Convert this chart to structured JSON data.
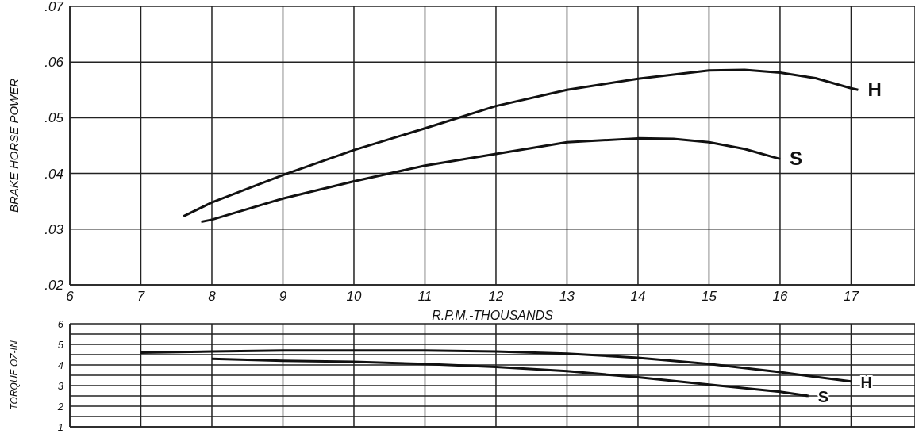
{
  "chart_data": [
    {
      "type": "line",
      "xlabel": "R.P.M.-THOUSANDS",
      "ylabel": "BRAKE HORSE POWER",
      "xlim": [
        6,
        17.9
      ],
      "xticks": [
        6,
        7,
        8,
        9,
        10,
        11,
        12,
        13,
        14,
        15,
        16,
        17
      ],
      "ylim": [
        0.02,
        0.07
      ],
      "yticks": [
        {
          "value": 0.02,
          "label": ".02"
        },
        {
          "value": 0.03,
          "label": ".03"
        },
        {
          "value": 0.04,
          "label": ".04"
        },
        {
          "value": 0.05,
          "label": ".05"
        },
        {
          "value": 0.06,
          "label": ".06"
        },
        {
          "value": 0.07,
          "label": ".07"
        }
      ],
      "grid": true,
      "marker": "none",
      "line_style": "solid",
      "series": [
        {
          "name": "H",
          "color": "#111111",
          "x": [
            7.6,
            8,
            9,
            10,
            11,
            12,
            13,
            14,
            15,
            15.5,
            16,
            16.5,
            17,
            17.1
          ],
          "values": [
            0.0323,
            0.0348,
            0.0397,
            0.0442,
            0.0481,
            0.0521,
            0.055,
            0.057,
            0.0585,
            0.0586,
            0.0581,
            0.0571,
            0.0553,
            0.055
          ]
        },
        {
          "name": "S",
          "color": "#111111",
          "x": [
            7.85,
            8,
            9,
            10,
            11,
            12,
            13,
            14,
            14.5,
            15,
            15.5,
            16
          ],
          "values": [
            0.0313,
            0.0317,
            0.0355,
            0.0386,
            0.0414,
            0.0435,
            0.0456,
            0.0463,
            0.0462,
            0.0456,
            0.0444,
            0.0426
          ]
        }
      ]
    },
    {
      "type": "line",
      "ylabel": "TORQUE OZ-IN",
      "xlim": [
        6,
        17.9
      ],
      "xticks": [
        6,
        7,
        8,
        9,
        10,
        11,
        12,
        13,
        14,
        15,
        16,
        17
      ],
      "ylim": [
        1,
        6
      ],
      "yticks": [
        1,
        {
          "value": 1.5,
          "label": null
        },
        2,
        {
          "value": 2.5,
          "label": null
        },
        3,
        {
          "value": 3.5,
          "label": null
        },
        4,
        {
          "value": 4.5,
          "label": null
        },
        5,
        {
          "value": 5.5,
          "label": null
        },
        6
      ],
      "grid": true,
      "tick_labels": "y",
      "marker": "none",
      "line_style": "solid",
      "series": [
        {
          "name": "H",
          "color": "#111111",
          "x": [
            7,
            8,
            9,
            10,
            11,
            12,
            13,
            14,
            15,
            16,
            17
          ],
          "values": [
            4.6,
            4.65,
            4.7,
            4.7,
            4.7,
            4.65,
            4.55,
            4.35,
            4.05,
            3.65,
            3.2
          ]
        },
        {
          "name": "S",
          "color": "#111111",
          "x": [
            8,
            9,
            10,
            11,
            12,
            13,
            14,
            15,
            16,
            16.4
          ],
          "values": [
            4.3,
            4.2,
            4.15,
            4.05,
            3.9,
            3.7,
            3.4,
            3.05,
            2.7,
            2.5
          ]
        }
      ]
    }
  ]
}
